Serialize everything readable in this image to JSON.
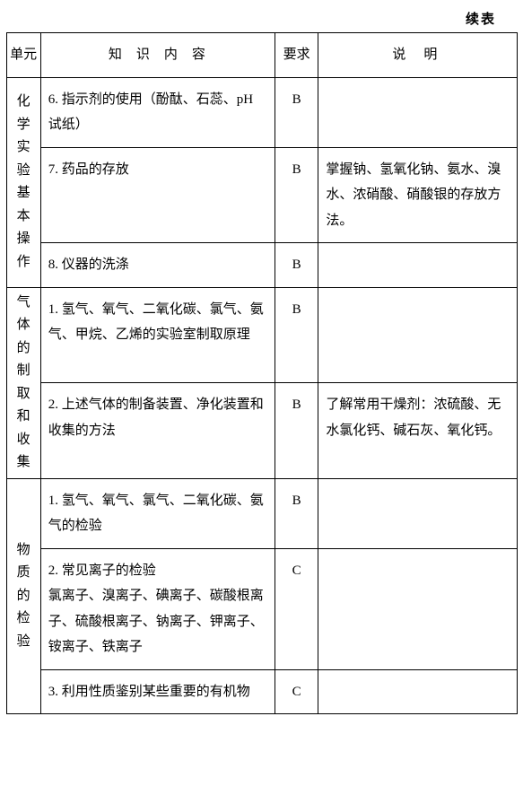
{
  "caption": "续表",
  "header": {
    "unit": "单元",
    "content": "知识内容",
    "requirement": "要求",
    "note": "说明"
  },
  "sections": [
    {
      "unit_label": "化学实验基本操作",
      "rows": [
        {
          "content": "6. 指示剂的使用（酚酞、石蕊、pH 试纸）",
          "req": "B",
          "note": ""
        },
        {
          "content": "7. 药品的存放",
          "req": "B",
          "note": "掌握钠、氢氧化钠、氨水、溴水、浓硝酸、硝酸银的存放方法。"
        },
        {
          "content": "8. 仪器的洗涤",
          "req": "B",
          "note": ""
        }
      ]
    },
    {
      "unit_label": "气体的制取和收集",
      "rows": [
        {
          "content": "1. 氢气、氧气、二氧化碳、氯气、氨气、甲烷、乙烯的实验室制取原理",
          "req": "B",
          "note": ""
        },
        {
          "content": "2. 上述气体的制备装置、净化装置和收集的方法",
          "req": "B",
          "note": "了解常用干燥剂：浓硫酸、无水氯化钙、碱石灰、氧化钙。"
        }
      ]
    },
    {
      "unit_label": "物质的检验",
      "rows": [
        {
          "content": "1. 氢气、氧气、氯气、二氧化碳、氨气的检验",
          "req": "B",
          "note": ""
        },
        {
          "content": "2. 常见离子的检验\n氯离子、溴离子、碘离子、碳酸根离子、硫酸根离子、钠离子、钾离子、铵离子、铁离子",
          "req": "C",
          "note": ""
        },
        {
          "content": "3. 利用性质鉴别某些重要的有机物",
          "req": "C",
          "note": ""
        }
      ]
    }
  ]
}
